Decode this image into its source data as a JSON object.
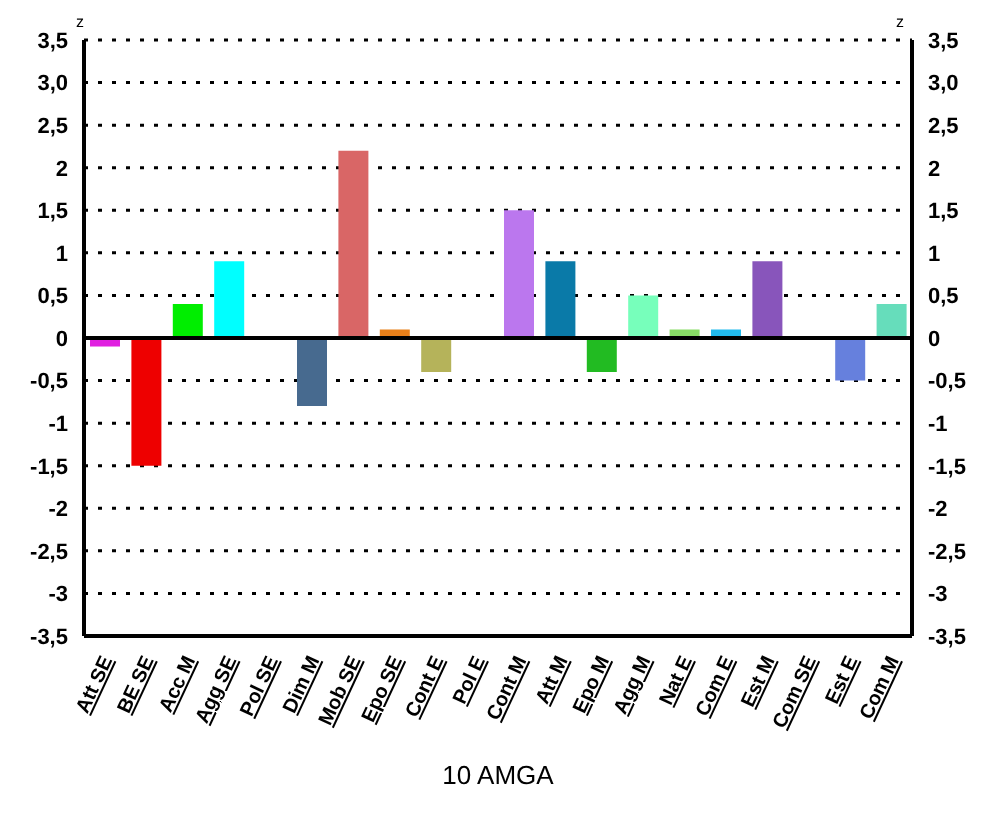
{
  "chart_data": {
    "type": "bar",
    "xlabel": "10 AMGA",
    "ylabel": "z",
    "y2label": "z",
    "categories": [
      "Att SE",
      "BE SE",
      "Acc M",
      "Agg SE",
      "Pol SE",
      "Dim M",
      "Mob SE",
      "Epo SE",
      "Cont E",
      "Pol E",
      "Cont M",
      "Att M",
      "Epo M",
      "Agg M",
      "Nat E",
      "Com E",
      "Est M",
      "Com SE",
      "Est E",
      "Com M"
    ],
    "values": [
      -0.1,
      -1.5,
      0.4,
      0.9,
      0,
      -0.8,
      2.2,
      0.1,
      -0.4,
      0,
      1.5,
      0.9,
      -0.4,
      0.5,
      0.1,
      0.1,
      0.9,
      0,
      -0.5,
      0.4
    ],
    "colors": [
      "#e020e0",
      "#ee0000",
      "#00ee00",
      "#00ffff",
      "#9966cc",
      "#476a8f",
      "#d96666",
      "#e8801a",
      "#b5b35a",
      "#d4a080",
      "#bb77ee",
      "#0a7aa8",
      "#22bb22",
      "#77ffbb",
      "#88dd66",
      "#22bbee",
      "#8855bb",
      "#cc99aa",
      "#6680dd",
      "#66ddbb"
    ],
    "ylim": [
      -3.5,
      3.5
    ],
    "yticks": [
      {
        "value": -3.5,
        "label": "-3,5"
      },
      -3,
      {
        "value": -2.5,
        "label": "-2,5"
      },
      -2,
      {
        "value": -1.5,
        "label": "-1,5"
      },
      -1,
      {
        "value": -0.5,
        "label": "-0,5"
      },
      0,
      {
        "value": 0.5,
        "label": "0,5"
      },
      1,
      {
        "value": 1.5,
        "label": "1,5"
      },
      2,
      {
        "value": 2.5,
        "label": "2,5"
      },
      {
        "value": 3,
        "label": "3,0"
      },
      {
        "value": 3.5,
        "label": "3,5"
      }
    ],
    "y2lim": [
      -3.5,
      3.5
    ],
    "y2ticks": [
      {
        "value": -3.5,
        "label": "-3,5"
      },
      -3,
      {
        "value": -2.5,
        "label": "-2,5"
      },
      -2,
      {
        "value": -1.5,
        "label": "-1,5"
      },
      -1,
      {
        "value": -0.5,
        "label": "-0,5"
      },
      0,
      {
        "value": 0.5,
        "label": "0,5"
      },
      1,
      {
        "value": 1.5,
        "label": "1,5"
      },
      2,
      {
        "value": 2.5,
        "label": "2,5"
      },
      {
        "value": 3,
        "label": "3,0"
      },
      {
        "value": 3.5,
        "label": "3,5"
      }
    ],
    "ref_lines": [
      {
        "axis": "y",
        "value": 0,
        "color": "#000000"
      }
    ],
    "grid": "y",
    "line_style": "dotted"
  }
}
